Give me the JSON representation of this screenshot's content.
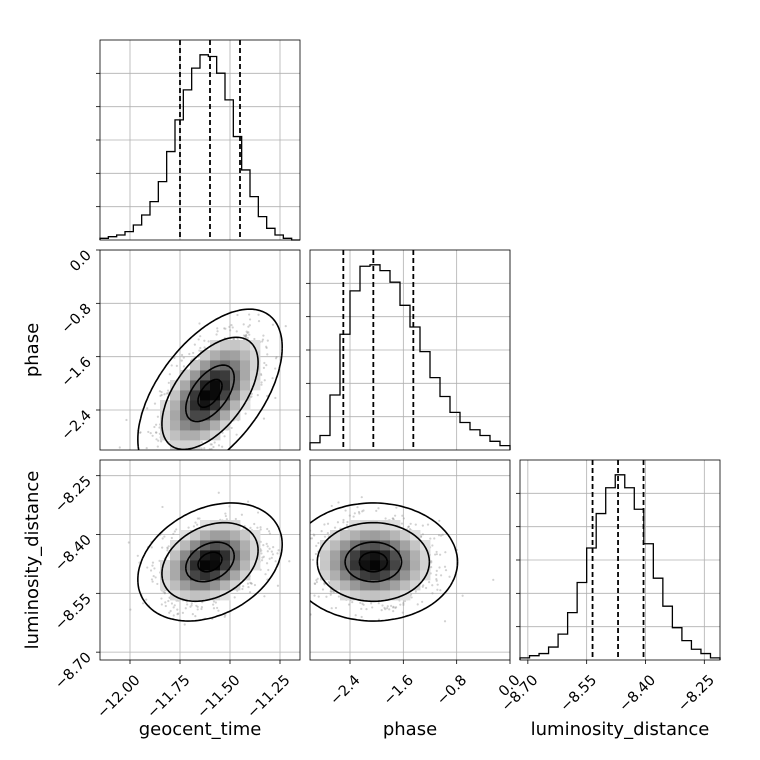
{
  "chart_data": {
    "type": "corner",
    "parameters": [
      "geocent_time",
      "phase",
      "luminosity_distance"
    ],
    "axis_labels": {
      "x": [
        "geocent_time",
        "phase",
        "luminosity_distance"
      ],
      "y": [
        "phase",
        "luminosity_distance"
      ]
    },
    "ranges": {
      "geocent_time": [
        -12.15,
        -11.15
      ],
      "phase": [
        -3.0,
        0.0
      ],
      "luminosity_distance": [
        -8.72,
        -8.21
      ]
    },
    "ticks": {
      "geocent_time": [
        -12.0,
        -11.75,
        -11.5,
        -11.25
      ],
      "phase": [
        -2.4,
        -1.6,
        -0.8,
        0.0
      ],
      "luminosity_distance": [
        -8.7,
        -8.55,
        -8.4,
        -8.25
      ]
    },
    "tick_labels": {
      "geocent_time": [
        "−12.00",
        "−11.75",
        "−11.50",
        "−11.25"
      ],
      "phase": [
        "−2.4",
        "−1.6",
        "−0.8",
        "0.0"
      ],
      "luminosity_distance": [
        "−8.70",
        "−8.55",
        "−8.40",
        "−8.25"
      ]
    },
    "quantiles": {
      "geocent_time": [
        -11.75,
        -11.6,
        -11.45
      ],
      "phase": [
        -2.5,
        -2.05,
        -1.45
      ],
      "luminosity_distance": [
        -8.535,
        -8.47,
        -8.405
      ]
    },
    "histograms": {
      "geocent_time": {
        "bins": [
          -12.15,
          -11.15
        ],
        "counts": [
          1,
          2,
          3,
          5,
          9,
          15,
          23,
          35,
          53,
          72,
          90,
          103,
          111,
          110,
          100,
          84,
          62,
          42,
          26,
          14,
          7,
          3,
          1,
          0
        ]
      },
      "phase": {
        "bins": [
          -3.0,
          0.0
        ],
        "counts": [
          5,
          10,
          38,
          80,
          110,
          127,
          128,
          124,
          116,
          100,
          85,
          68,
          50,
          37,
          26,
          19,
          14,
          10,
          6,
          3
        ]
      },
      "luminosity_distance": {
        "bins": [
          -8.72,
          -8.21
        ],
        "counts": [
          1,
          2,
          3,
          6,
          12,
          22,
          36,
          52,
          68,
          80,
          86,
          80,
          70,
          54,
          38,
          25,
          15,
          9,
          5,
          3,
          1
        ]
      }
    },
    "density_2d": [
      {
        "x": "geocent_time",
        "y": "phase",
        "mean": [
          -11.6,
          -2.15
        ],
        "sd": [
          0.12,
          0.42
        ],
        "corr": 0.55
      },
      {
        "x": "geocent_time",
        "y": "luminosity_distance",
        "mean": [
          -11.6,
          -8.47
        ],
        "sd": [
          0.12,
          0.05
        ],
        "corr": 0.3
      },
      {
        "x": "phase",
        "y": "luminosity_distance",
        "mean": [
          -2.05,
          -8.47
        ],
        "sd": [
          0.42,
          0.05
        ],
        "corr": 0.0
      }
    ],
    "grid": true,
    "quantile_line_style": "dashed"
  }
}
